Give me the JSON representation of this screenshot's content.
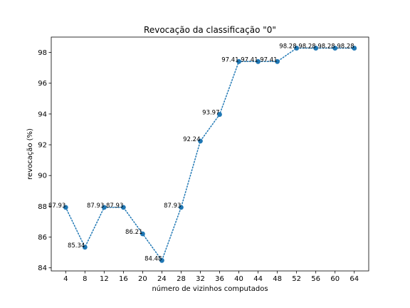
{
  "chart_data": {
    "type": "line",
    "title": "Revocação da classificação \"0\"",
    "xlabel": "número de vizinhos computados",
    "ylabel": "revocação (%)",
    "x": [
      4,
      8,
      12,
      16,
      20,
      24,
      28,
      32,
      36,
      40,
      44,
      48,
      52,
      56,
      60,
      64
    ],
    "x_tick_labels": [
      "4",
      "8",
      "12",
      "16",
      "20",
      "24",
      "28",
      "32",
      "36",
      "40",
      "44",
      "48",
      "52",
      "56",
      "60",
      "64"
    ],
    "series": [
      {
        "values": [
          87.93,
          85.34,
          87.93,
          87.93,
          86.21,
          84.48,
          87.93,
          92.24,
          93.97,
          97.41,
          97.41,
          97.41,
          98.28,
          98.28,
          98.28,
          98.28
        ],
        "data_labels": [
          "87.93",
          "85.34",
          "87.93",
          "87.93",
          "86.21",
          "84.48",
          "87.93",
          "92.24",
          "93.97",
          "97.41",
          "97.41",
          "97.41",
          "98.28",
          "98.28",
          "98.28",
          "98.28"
        ],
        "color": "#1f77b4",
        "line_style": "dotted",
        "marker": "circle"
      }
    ],
    "xlim": [
      1.0,
      67.0
    ],
    "ylim": [
      83.8,
      99.0
    ],
    "y_ticks": [
      84,
      86,
      88,
      90,
      92,
      94,
      96,
      98
    ],
    "y_tick_labels": [
      "84",
      "86",
      "88",
      "90",
      "92",
      "94",
      "96",
      "98"
    ],
    "grid": false,
    "legend": "none"
  }
}
